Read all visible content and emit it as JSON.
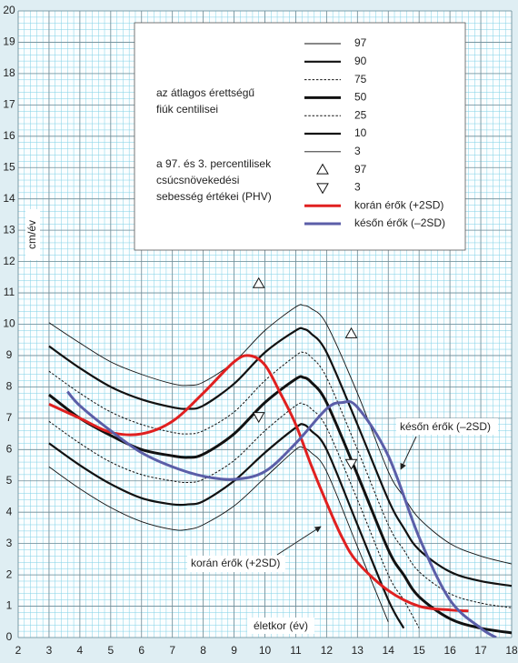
{
  "chart_data": {
    "type": "line",
    "y_label": "cm/év",
    "x_label": "életkor (év)",
    "xlim": [
      2,
      18
    ],
    "ylim": [
      0,
      20
    ],
    "xticks": [
      2,
      3,
      4,
      5,
      6,
      7,
      8,
      9,
      10,
      11,
      12,
      13,
      14,
      15,
      16,
      17,
      18
    ],
    "yticks": [
      0,
      1,
      2,
      3,
      4,
      5,
      6,
      7,
      8,
      9,
      10,
      11,
      12,
      13,
      14,
      15,
      16,
      17,
      18,
      19,
      20
    ],
    "grid": true,
    "notes": [
      [
        "az átlagos érettségű",
        "fiúk centilisei"
      ],
      [
        "a 97. és 3. percentilisek",
        "csúcsnövekedési",
        "sebesség értékei (PHV)"
      ]
    ],
    "annotations": [
      "későn érők (–2SD)",
      "korán érők (+2SD)"
    ],
    "x": [
      3,
      4,
      5,
      6,
      7,
      7.5,
      8,
      9,
      10,
      11,
      11.25,
      11.5,
      12,
      13,
      14,
      14.5,
      15,
      16,
      17,
      18
    ],
    "series": [
      {
        "name": "97",
        "color": "#111111",
        "style": "thin",
        "values": [
          10.05,
          9.4,
          8.8,
          8.4,
          8.1,
          8.05,
          8.15,
          8.8,
          9.8,
          10.55,
          10.6,
          10.5,
          10.0,
          7.8,
          5.3,
          4.5,
          3.8,
          3.0,
          2.6,
          2.35
        ]
      },
      {
        "name": "90",
        "color": "#111111",
        "style": "thick",
        "values": [
          9.3,
          8.6,
          8.0,
          7.6,
          7.35,
          7.3,
          7.4,
          8.1,
          9.1,
          9.8,
          9.85,
          9.7,
          9.1,
          6.8,
          4.4,
          3.5,
          2.8,
          2.1,
          1.8,
          1.65
        ]
      },
      {
        "name": "75",
        "color": "#111111",
        "style": "dotted",
        "values": [
          8.5,
          7.8,
          7.2,
          6.8,
          6.55,
          6.5,
          6.6,
          7.2,
          8.2,
          9.0,
          9.1,
          8.95,
          8.3,
          6.0,
          3.6,
          2.8,
          2.1,
          1.4,
          1.1,
          0.95
        ]
      },
      {
        "name": "50",
        "color": "#111111",
        "style": "bold",
        "values": [
          7.75,
          7.0,
          6.45,
          6.0,
          5.8,
          5.75,
          5.85,
          6.5,
          7.5,
          8.25,
          8.3,
          8.15,
          7.5,
          5.2,
          2.8,
          2.0,
          1.3,
          0.6,
          0.3,
          0.15
        ]
      },
      {
        "name": "25",
        "color": "#111111",
        "style": "dotted",
        "values": [
          6.9,
          6.2,
          5.6,
          5.2,
          5.0,
          4.95,
          5.05,
          5.65,
          6.6,
          7.4,
          7.45,
          7.3,
          6.7,
          4.4,
          2.0,
          1.2,
          0.3,
          null,
          null,
          null
        ]
      },
      {
        "name": "10",
        "color": "#111111",
        "style": "thick",
        "values": [
          6.2,
          5.5,
          4.9,
          4.45,
          4.25,
          4.25,
          4.35,
          5.0,
          5.9,
          6.7,
          6.8,
          6.6,
          6.0,
          3.6,
          1.2,
          0.3,
          null,
          null,
          null,
          null
        ]
      },
      {
        "name": "3",
        "color": "#111111",
        "style": "thin",
        "values": [
          5.45,
          4.75,
          4.15,
          3.7,
          3.45,
          3.45,
          3.6,
          4.2,
          5.1,
          6.0,
          6.05,
          5.9,
          5.3,
          2.9,
          0.5,
          null,
          null,
          null,
          null,
          null
        ]
      },
      {
        "name": "97",
        "type": "scatter",
        "marker": "triangle-up",
        "color": "#111111",
        "x": [
          9.8,
          12.8
        ],
        "values": [
          11.3,
          9.7
        ]
      },
      {
        "name": "3",
        "type": "scatter",
        "marker": "triangle-down",
        "color": "#111111",
        "x": [
          9.8,
          12.8
        ],
        "values": [
          7.05,
          5.55
        ]
      },
      {
        "name": "korán érők (+2SD)",
        "color": "#e02020",
        "style": "bold",
        "x": [
          3,
          4,
          5,
          6,
          7,
          8,
          9,
          9.5,
          10,
          10.5,
          11,
          11.5,
          12,
          12.5,
          13,
          14,
          15,
          16,
          16.6
        ],
        "values": [
          7.45,
          7.0,
          6.55,
          6.5,
          6.9,
          7.8,
          8.8,
          9.0,
          8.7,
          7.8,
          6.8,
          5.5,
          4.3,
          3.2,
          2.4,
          1.5,
          1.0,
          0.88,
          0.85
        ]
      },
      {
        "name": "későn érők (–2SD)",
        "color": "#5b5ea8",
        "style": "bold",
        "x": [
          3.6,
          4,
          5,
          6,
          7,
          8,
          9,
          10,
          11,
          12,
          12.5,
          13,
          14,
          15,
          16,
          17,
          17.5
        ],
        "values": [
          7.85,
          7.4,
          6.6,
          5.9,
          5.45,
          5.15,
          5.05,
          5.3,
          6.2,
          7.3,
          7.5,
          7.35,
          5.8,
          3.2,
          1.2,
          0.3,
          0.0
        ]
      }
    ]
  }
}
